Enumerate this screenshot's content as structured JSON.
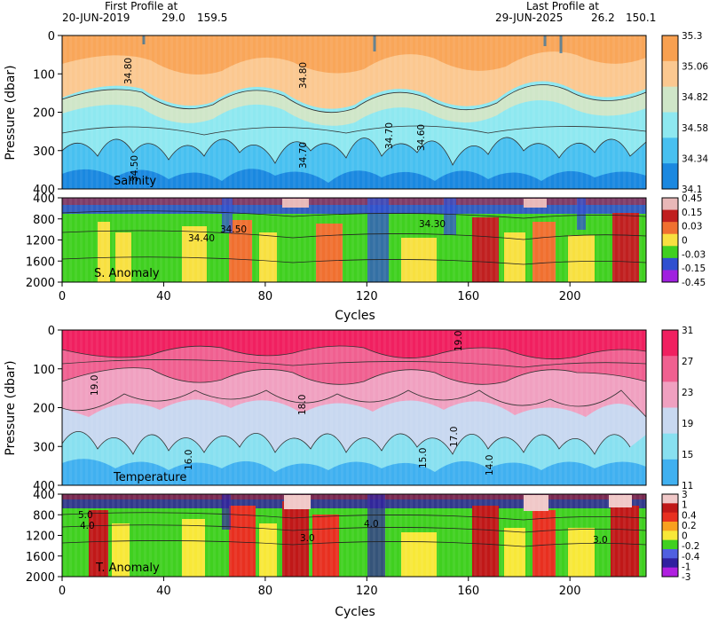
{
  "header": {
    "first_label": "First Profile at",
    "first_date": "20-JUN-2019",
    "first_lat": "29.0",
    "first_lon": "159.5",
    "last_label": "Last Profile at",
    "last_date": "29-JUN-2025",
    "last_lat": "26.2",
    "last_lon": "150.1"
  },
  "chart_data": [
    {
      "type": "heatmap",
      "label": "Salinity",
      "ylabel": "Pressure (dbar)",
      "x_range": [
        0,
        230
      ],
      "y_range": [
        0,
        400
      ],
      "y_ticks": [
        "0",
        "100",
        "200",
        "300",
        "400"
      ],
      "colorbar_labels": [
        "35.3",
        "35.06",
        "34.82",
        "34.58",
        "34.34",
        "34.1"
      ],
      "colorbar_colors": [
        "#f8a050",
        "#fbc890",
        "#cfe6c8",
        "#8ee8f0",
        "#48c0f0",
        "#1a88e0"
      ],
      "contour_labels": [
        "34.80",
        "34.70",
        "34.60",
        "34.50"
      ]
    },
    {
      "type": "heatmap",
      "label": "S. Anomaly",
      "y_range": [
        400,
        2000
      ],
      "y_ticks": [
        "400",
        "800",
        "1200",
        "1600",
        "2000"
      ],
      "colorbar_labels": [
        "0.45",
        "0.15",
        "0.03",
        "0",
        "-0.03",
        "-0.15",
        "-0.45"
      ],
      "colorbar_colors": [
        "#e8b8b8",
        "#c02020",
        "#f07030",
        "#f8e040",
        "#40d020",
        "#3050d0",
        "#a020e0"
      ],
      "contour_labels": [
        "34.40",
        "34.50",
        "34.30"
      ]
    },
    {
      "type": "heatmap",
      "label": "Temperature",
      "ylabel": "Pressure (dbar)",
      "y_range": [
        0,
        400
      ],
      "y_ticks": [
        "0",
        "100",
        "200",
        "300",
        "400"
      ],
      "colorbar_labels": [
        "31",
        "27",
        "23",
        "19",
        "15",
        "11"
      ],
      "colorbar_colors": [
        "#f02060",
        "#f06090",
        "#f0a0c0",
        "#c8d8f0",
        "#88e0f0",
        "#40b0f0"
      ],
      "contour_labels": [
        "19.0",
        "18.0",
        "17.0",
        "16.0",
        "15.0",
        "14.0"
      ]
    },
    {
      "type": "heatmap",
      "label": "T. Anomaly",
      "y_range": [
        400,
        2000
      ],
      "y_ticks": [
        "400",
        "800",
        "1200",
        "1600",
        "2000"
      ],
      "colorbar_labels": [
        "3",
        "1",
        "0.4",
        "0.2",
        "0",
        "-0.2",
        "-0.4",
        "-1",
        "-3"
      ],
      "colorbar_colors": [
        "#f0c8c8",
        "#c01818",
        "#e83020",
        "#f8a020",
        "#f8e838",
        "#40d020",
        "#5060e0",
        "#3020a0",
        "#b020e0"
      ],
      "contour_labels": [
        "5.0",
        "4.0",
        "3.0"
      ]
    }
  ],
  "x_axis": {
    "label": "Cycles",
    "ticks": [
      "0",
      "40",
      "80",
      "120",
      "160",
      "200"
    ]
  }
}
